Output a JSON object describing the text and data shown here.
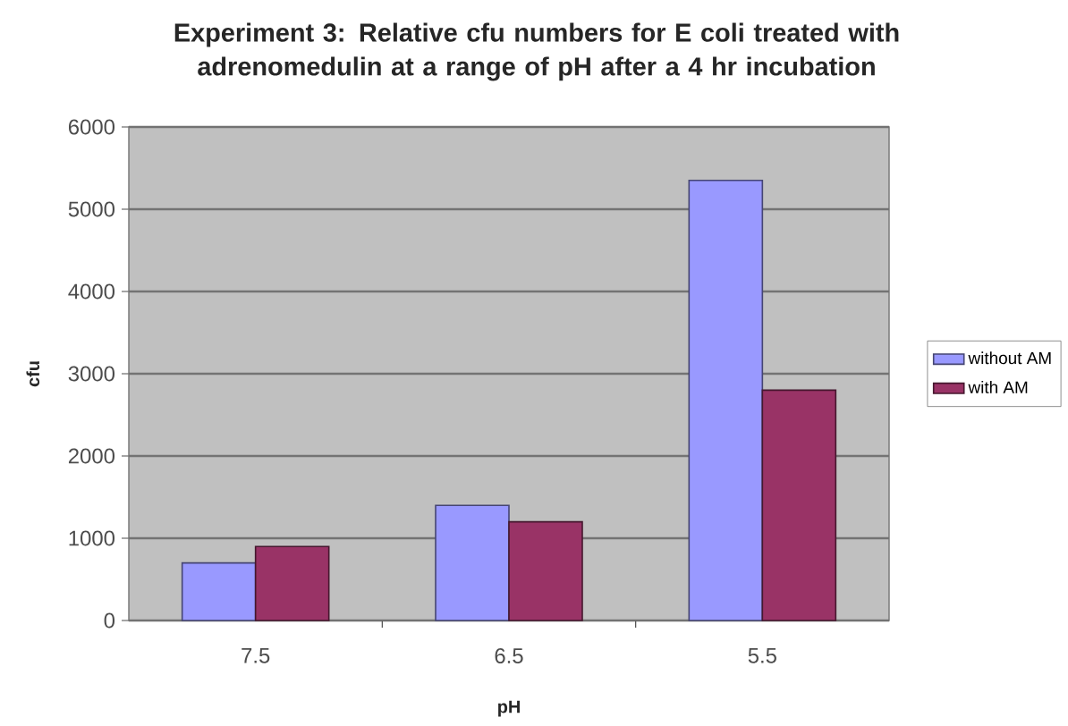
{
  "chart_data": {
    "type": "bar",
    "title": "Experiment 3: Relative cfu numbers for E coli treated with adrenomedulin at a range of pH after a 4 hr incubation",
    "xlabel": "pH",
    "ylabel": "cfu",
    "categories": [
      "7.5",
      "6.5",
      "5.5"
    ],
    "series": [
      {
        "name": "without AM",
        "color": "#9999ff",
        "values": [
          700,
          1400,
          5350
        ]
      },
      {
        "name": "with AM",
        "color": "#993366",
        "values": [
          900,
          1200,
          2800
        ]
      }
    ],
    "ylim": [
      0,
      6000
    ],
    "yticks": [
      0,
      1000,
      2000,
      3000,
      4000,
      5000,
      6000
    ],
    "grid": "y",
    "legend": "right"
  }
}
